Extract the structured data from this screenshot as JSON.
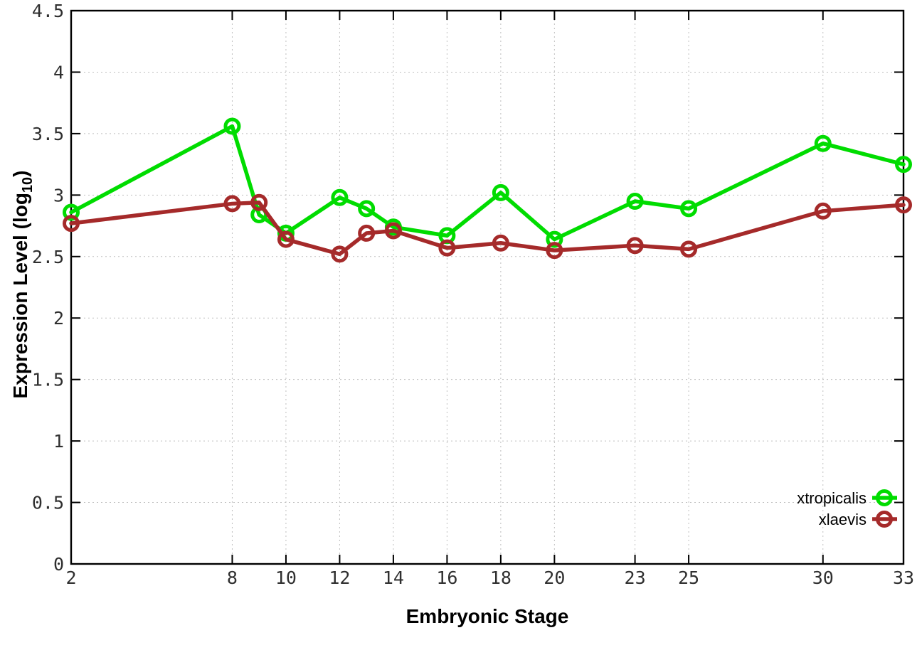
{
  "page": {
    "background_color": "#ffffff"
  },
  "chart_data": {
    "type": "line",
    "title": "",
    "xlabel": "Embryonic Stage",
    "ylabel": "Expression Level (log10)",
    "ylabel_parts": {
      "base": "Expression Level (log",
      "sub": "10",
      "close": ")"
    },
    "x": [
      2,
      8,
      9,
      10,
      12,
      13,
      14,
      16,
      18,
      20,
      23,
      25,
      30,
      33
    ],
    "series": [
      {
        "name": "xtropicalis",
        "color": "#00dc00",
        "marker": "open-circle",
        "values": [
          2.86,
          3.56,
          2.84,
          2.69,
          2.98,
          2.89,
          2.74,
          2.67,
          3.02,
          2.64,
          2.95,
          2.89,
          3.42,
          3.25
        ]
      },
      {
        "name": "xlaevis",
        "color": "#a52a2a",
        "marker": "open-circle",
        "values": [
          2.77,
          2.93,
          2.94,
          2.64,
          2.52,
          2.69,
          2.71,
          2.57,
          2.61,
          2.55,
          2.59,
          2.56,
          2.87,
          2.92
        ]
      }
    ],
    "xticks": [
      2,
      8,
      10,
      12,
      14,
      16,
      18,
      20,
      23,
      25,
      30,
      33
    ],
    "xtick_labels": [
      "2",
      "8",
      "10",
      "12",
      "14",
      "16",
      "18",
      "20",
      "23",
      "25",
      "30",
      "33"
    ],
    "yticks": [
      0,
      0.5,
      1,
      1.5,
      2,
      2.5,
      3,
      3.5,
      4,
      4.5
    ],
    "ytick_labels": [
      "0",
      "0.5",
      "1",
      "1.5",
      "2",
      "2.5",
      "3",
      "3.5",
      "4",
      "4.5"
    ],
    "xlim": [
      2,
      33
    ],
    "ylim": [
      0,
      4.5
    ],
    "grid": true,
    "grid_style": "dotted",
    "legend_position": "bottom-right",
    "colors": {
      "border": "#000000",
      "grid": "#bfbfbf",
      "tick_text": "#2f2f2f",
      "background": "#ffffff"
    }
  }
}
